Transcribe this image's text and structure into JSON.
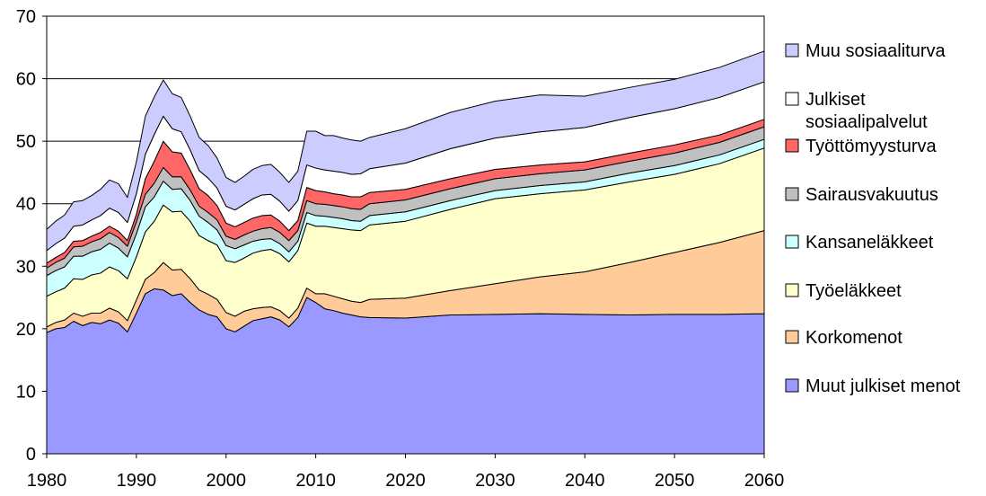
{
  "chart_data": {
    "type": "area",
    "stacked": true,
    "title": "",
    "xlabel": "",
    "ylabel": "",
    "xlim": [
      1980,
      2060
    ],
    "ylim": [
      0,
      70
    ],
    "y_ticks": [
      0,
      10,
      20,
      30,
      40,
      50,
      60,
      70
    ],
    "x_ticks": [
      1980,
      1990,
      2000,
      2010,
      2020,
      2030,
      2040,
      2050,
      2060
    ],
    "y_gridlines": true,
    "legend_position": "right",
    "x": [
      1980,
      1981,
      1982,
      1983,
      1984,
      1985,
      1986,
      1987,
      1988,
      1989,
      1990,
      1991,
      1992,
      1993,
      1994,
      1995,
      1996,
      1997,
      1998,
      1999,
      2000,
      2001,
      2002,
      2003,
      2004,
      2005,
      2006,
      2007,
      2008,
      2009,
      2010,
      2011,
      2012,
      2013,
      2014,
      2015,
      2016,
      2020,
      2025,
      2030,
      2035,
      2040,
      2045,
      2050,
      2055,
      2060
    ],
    "series": [
      {
        "name": "Muut julkiset menot",
        "color": "#9999ff",
        "values": [
          19.4,
          20.0,
          20.2,
          21.2,
          20.5,
          21.0,
          20.8,
          21.4,
          20.9,
          19.5,
          22.5,
          25.6,
          26.4,
          26.2,
          25.3,
          25.6,
          24.2,
          23.0,
          22.3,
          21.9,
          20.0,
          19.5,
          20.4,
          21.3,
          21.6,
          21.9,
          21.4,
          20.3,
          21.8,
          25.0,
          24.2,
          23.2,
          22.9,
          22.5,
          22.2,
          21.9,
          21.8,
          21.7,
          22.2,
          22.3,
          22.4,
          22.3,
          22.2,
          22.3,
          22.3,
          22.4
        ]
      },
      {
        "name": "Korkomenot",
        "color": "#ffcc99",
        "values": [
          0.9,
          1.0,
          1.2,
          1.3,
          1.5,
          1.5,
          1.7,
          1.9,
          1.8,
          1.8,
          2.1,
          2.3,
          2.6,
          4.4,
          4.1,
          3.9,
          3.8,
          3.2,
          3.2,
          2.8,
          2.6,
          2.5,
          2.4,
          1.9,
          1.8,
          1.6,
          1.5,
          1.4,
          1.5,
          1.5,
          1.4,
          2.4,
          2.3,
          2.3,
          2.2,
          2.3,
          2.9,
          3.2,
          3.9,
          4.9,
          5.9,
          6.8,
          8.4,
          9.9,
          11.5,
          13.3
        ]
      },
      {
        "name": "Työeläkkeet",
        "color": "#ffffcc",
        "values": [
          4.9,
          4.9,
          5.1,
          5.5,
          5.9,
          6.1,
          6.4,
          6.6,
          6.6,
          6.7,
          6.9,
          7.6,
          8.2,
          9.2,
          9.3,
          9.3,
          9.2,
          8.7,
          8.6,
          8.7,
          8.3,
          8.6,
          8.5,
          8.9,
          9.1,
          9.2,
          9.1,
          9.0,
          9.2,
          10.4,
          10.8,
          10.8,
          11.0,
          11.2,
          11.4,
          11.5,
          11.9,
          12.3,
          13.0,
          13.6,
          13.3,
          13.1,
          12.9,
          12.5,
          12.6,
          13.2
        ]
      },
      {
        "name": "Kansaneläkkeet",
        "color": "#ccffff",
        "values": [
          3.3,
          3.4,
          3.4,
          3.6,
          3.7,
          3.7,
          3.8,
          3.8,
          3.6,
          3.5,
          3.7,
          4.0,
          3.9,
          3.8,
          3.6,
          3.6,
          3.3,
          3.1,
          2.9,
          2.4,
          2.4,
          2.2,
          2.1,
          1.9,
          1.8,
          1.7,
          1.6,
          1.6,
          1.5,
          1.7,
          1.7,
          1.6,
          1.6,
          1.6,
          1.5,
          1.5,
          1.5,
          1.5,
          1.4,
          1.3,
          1.3,
          1.3,
          1.4,
          1.4,
          1.4,
          1.4
        ]
      },
      {
        "name": "Sairausvakuutus",
        "color": "#c0c0c0",
        "values": [
          1.2,
          1.3,
          1.4,
          1.5,
          1.6,
          1.6,
          1.7,
          1.7,
          1.7,
          1.7,
          1.9,
          2.0,
          2.2,
          2.2,
          2.0,
          1.9,
          1.7,
          1.6,
          1.6,
          1.6,
          1.5,
          1.5,
          1.6,
          1.6,
          1.7,
          1.8,
          1.8,
          1.8,
          1.7,
          1.9,
          1.9,
          1.9,
          1.9,
          1.9,
          1.9,
          1.9,
          1.9,
          1.9,
          1.9,
          1.9,
          1.9,
          1.9,
          1.9,
          2.0,
          2.0,
          2.0
        ]
      },
      {
        "name": "Työttömyysturva",
        "color": "#ff6666",
        "values": [
          0.8,
          0.8,
          0.9,
          0.9,
          0.9,
          0.9,
          1.0,
          1.0,
          1.0,
          0.9,
          1.2,
          2.5,
          3.5,
          4.2,
          4.0,
          3.8,
          3.2,
          2.8,
          2.7,
          2.3,
          2.1,
          2.0,
          2.0,
          2.1,
          2.1,
          2.0,
          1.8,
          1.6,
          1.6,
          2.1,
          2.1,
          2.0,
          1.9,
          1.9,
          1.9,
          2.0,
          1.8,
          1.7,
          1.6,
          1.5,
          1.4,
          1.3,
          1.3,
          1.3,
          1.2,
          1.2
        ]
      },
      {
        "name": "Julkiset sosiaalipalvelut",
        "color": "#ffffff",
        "values": [
          2.0,
          2.2,
          2.3,
          2.4,
          2.5,
          2.6,
          2.7,
          2.9,
          3.0,
          2.9,
          3.3,
          3.9,
          4.3,
          4.0,
          3.7,
          3.4,
          3.2,
          2.9,
          2.8,
          2.8,
          2.7,
          2.7,
          2.9,
          3.1,
          3.3,
          3.3,
          3.2,
          3.1,
          3.2,
          3.6,
          3.6,
          3.5,
          3.6,
          3.6,
          3.6,
          3.7,
          3.8,
          4.2,
          4.8,
          5.0,
          5.3,
          5.5,
          5.7,
          5.8,
          6.0,
          6.0
        ]
      },
      {
        "name": "Muu sosiaaliturva",
        "color": "#ccccff",
        "values": [
          3.4,
          3.6,
          3.7,
          3.9,
          3.9,
          3.9,
          4.2,
          4.5,
          4.6,
          4.0,
          5.1,
          6.1,
          6.0,
          5.8,
          5.6,
          5.5,
          5.4,
          5.3,
          5.2,
          4.8,
          4.6,
          4.4,
          4.5,
          4.7,
          4.7,
          4.8,
          4.6,
          4.6,
          4.7,
          5.4,
          5.9,
          5.5,
          5.7,
          5.5,
          5.5,
          5.2,
          5.0,
          5.5,
          5.8,
          5.9,
          5.9,
          5.0,
          4.8,
          4.7,
          4.8,
          4.9
        ]
      }
    ]
  }
}
